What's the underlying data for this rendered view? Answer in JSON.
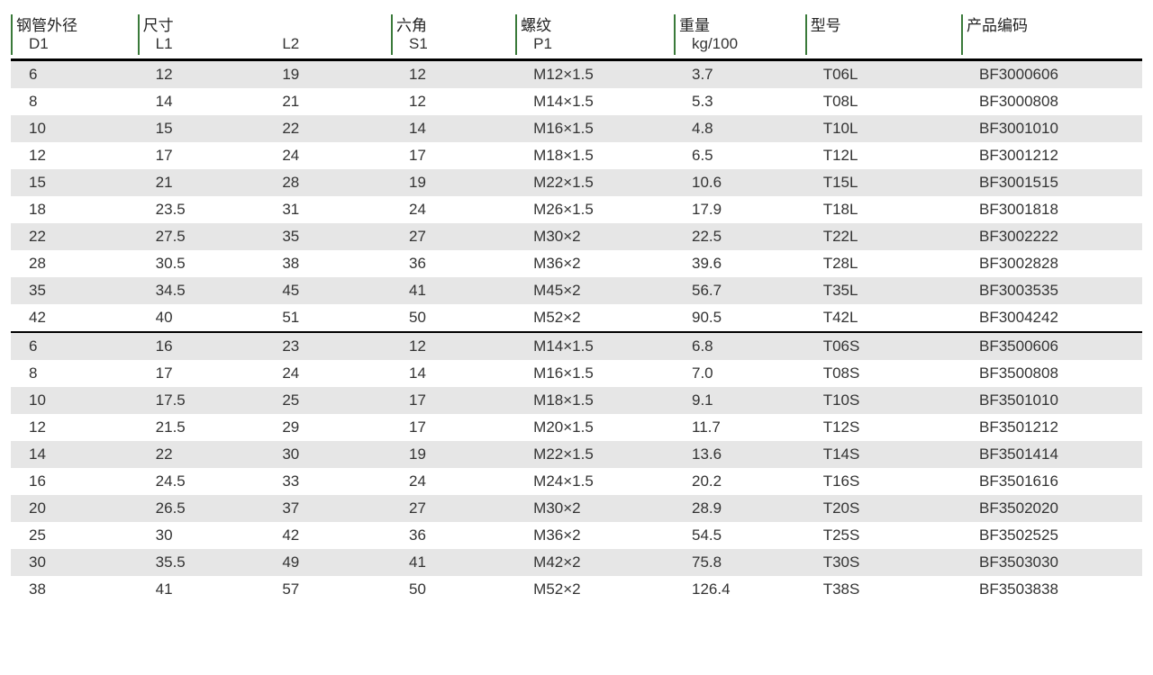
{
  "table": {
    "colors": {
      "background": "#ffffff",
      "text": "#222222",
      "stripe": "#e6e6e6",
      "header_tick": "#3a7a3a",
      "rule": "#000000"
    },
    "fontsize": 17,
    "column_widths_pct": [
      11.2,
      11.2,
      11.2,
      11.0,
      14.0,
      11.6,
      13.8,
      16.0
    ],
    "header_row1": [
      "钢管外径",
      "尺寸",
      "",
      "六角",
      "螺纹",
      "重量",
      "型号",
      "产品编码"
    ],
    "header_row1_tick": [
      true,
      true,
      false,
      true,
      true,
      true,
      true,
      true
    ],
    "header_row2": [
      "D1",
      "L1",
      "L2",
      "S1",
      "P1",
      "kg/100",
      "",
      ""
    ],
    "sections": [
      {
        "rows": [
          [
            "6",
            "12",
            "19",
            "12",
            "M12×1.5",
            "3.7",
            "T06L",
            "BF3000606"
          ],
          [
            "8",
            "14",
            "21",
            "12",
            "M14×1.5",
            "5.3",
            "T08L",
            "BF3000808"
          ],
          [
            "10",
            "15",
            "22",
            "14",
            "M16×1.5",
            "4.8",
            "T10L",
            "BF3001010"
          ],
          [
            "12",
            "17",
            "24",
            "17",
            "M18×1.5",
            "6.5",
            "T12L",
            "BF3001212"
          ],
          [
            "15",
            "21",
            "28",
            "19",
            "M22×1.5",
            "10.6",
            "T15L",
            "BF3001515"
          ],
          [
            "18",
            "23.5",
            "31",
            "24",
            "M26×1.5",
            "17.9",
            "T18L",
            "BF3001818"
          ],
          [
            "22",
            "27.5",
            "35",
            "27",
            "M30×2",
            "22.5",
            "T22L",
            "BF3002222"
          ],
          [
            "28",
            "30.5",
            "38",
            "36",
            "M36×2",
            "39.6",
            "T28L",
            "BF3002828"
          ],
          [
            "35",
            "34.5",
            "45",
            "41",
            "M45×2",
            "56.7",
            "T35L",
            "BF3003535"
          ],
          [
            "42",
            "40",
            "51",
            "50",
            "M52×2",
            "90.5",
            "T42L",
            "BF3004242"
          ]
        ]
      },
      {
        "rows": [
          [
            "6",
            "16",
            "23",
            "12",
            "M14×1.5",
            "6.8",
            "T06S",
            "BF3500606"
          ],
          [
            "8",
            "17",
            "24",
            "14",
            "M16×1.5",
            "7.0",
            "T08S",
            "BF3500808"
          ],
          [
            "10",
            "17.5",
            "25",
            "17",
            "M18×1.5",
            "9.1",
            "T10S",
            "BF3501010"
          ],
          [
            "12",
            "21.5",
            "29",
            "17",
            "M20×1.5",
            "11.7",
            "T12S",
            "BF3501212"
          ],
          [
            "14",
            "22",
            "30",
            "19",
            "M22×1.5",
            "13.6",
            "T14S",
            "BF3501414"
          ],
          [
            "16",
            "24.5",
            "33",
            "24",
            "M24×1.5",
            "20.2",
            "T16S",
            "BF3501616"
          ],
          [
            "20",
            "26.5",
            "37",
            "27",
            "M30×2",
            "28.9",
            "T20S",
            "BF3502020"
          ],
          [
            "25",
            "30",
            "42",
            "36",
            "M36×2",
            "54.5",
            "T25S",
            "BF3502525"
          ],
          [
            "30",
            "35.5",
            "49",
            "41",
            "M42×2",
            "75.8",
            "T30S",
            "BF3503030"
          ],
          [
            "38",
            "41",
            "57",
            "50",
            "M52×2",
            "126.4",
            "T38S",
            "BF3503838"
          ]
        ]
      }
    ]
  }
}
